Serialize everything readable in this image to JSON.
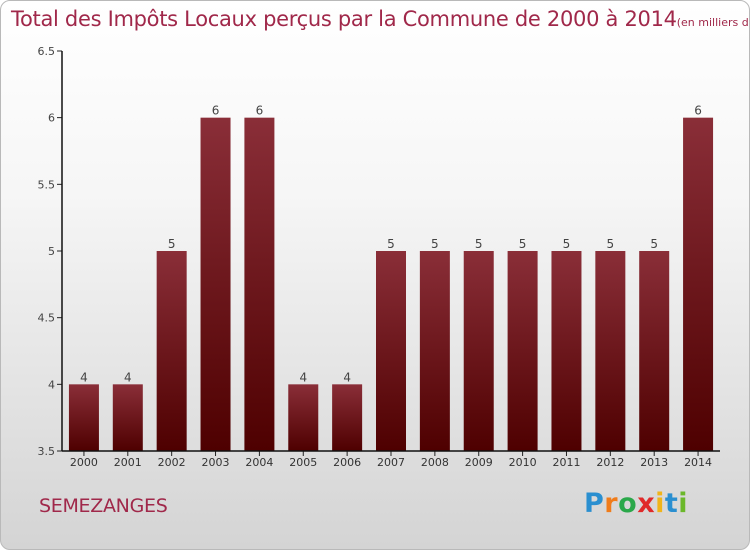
{
  "title": "Total des Impôts Locaux perçus par la Commune de 2000 à 2014",
  "unit": "(en milliers d'€)",
  "commune": "SEMEZANGES",
  "brand": {
    "letters": [
      "P",
      "r",
      "o",
      "x",
      "i",
      "t",
      "i"
    ],
    "colors": [
      "#2a8fd0",
      "#f07c1a",
      "#2aa84a",
      "#e02a2a",
      "#f0b41a",
      "#2a8fd0",
      "#6bb82a"
    ]
  },
  "colors": {
    "bar_top": "#8a2e38",
    "bar_bottom": "#4e0000",
    "title": "#a0284a"
  },
  "chart_data": {
    "type": "bar",
    "categories": [
      "2000",
      "2001",
      "2002",
      "2003",
      "2004",
      "2005",
      "2006",
      "2007",
      "2008",
      "2009",
      "2010",
      "2011",
      "2012",
      "2013",
      "2014"
    ],
    "values": [
      4,
      4,
      5,
      6,
      6,
      4,
      4,
      5,
      5,
      5,
      5,
      5,
      5,
      5,
      6
    ],
    "labels": [
      "4",
      "4",
      "5",
      "6",
      "6",
      "4",
      "4",
      "5",
      "5",
      "5",
      "5",
      "5",
      "5",
      "5",
      "6"
    ],
    "ylim": [
      3.5,
      6.5
    ],
    "yticks": [
      3.5,
      4,
      4.5,
      5,
      5.5,
      6,
      6.5
    ],
    "ytick_labels": [
      "3.5",
      "4",
      "4.5",
      "5",
      "5.5",
      "6",
      "6.5"
    ],
    "grid": false,
    "legend": "none"
  }
}
